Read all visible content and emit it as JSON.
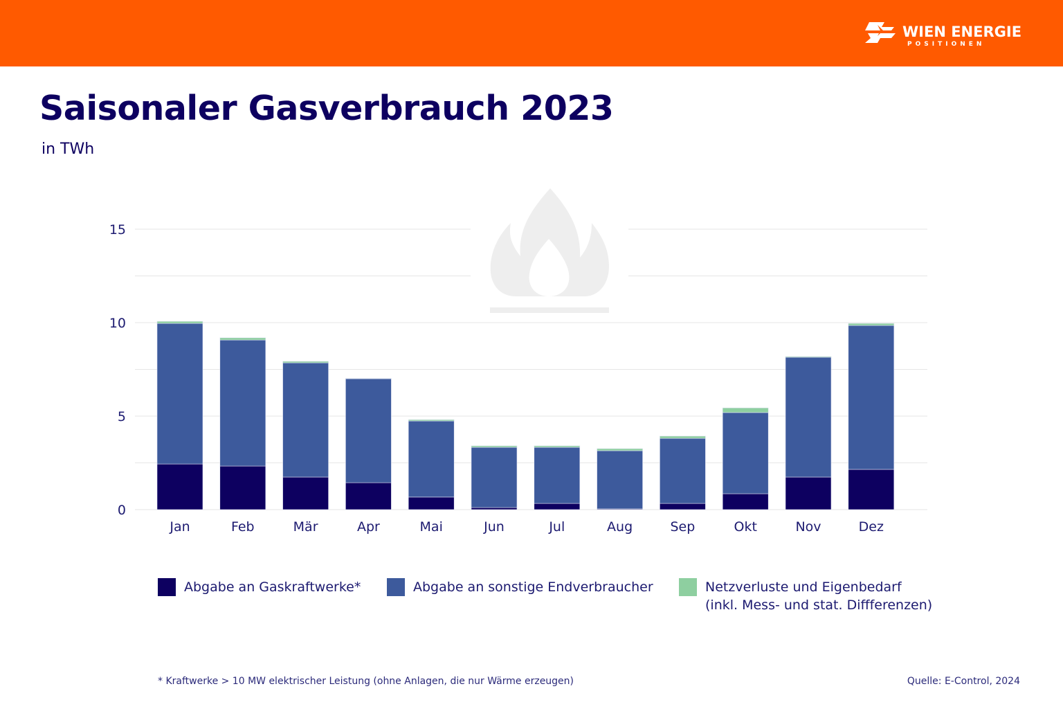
{
  "brand": {
    "name": "WIEN ENERGIE",
    "sub": "POSITIONEN",
    "color": "#ff5a00"
  },
  "title": "Saisonaler Gasverbrauch 2023",
  "subtitle": "in TWh",
  "chart_data": {
    "type": "bar",
    "stacked": true,
    "title": "Saisonaler Gasverbrauch 2023",
    "ylabel": "in TWh",
    "ylim": [
      0,
      15
    ],
    "yticks": [
      0,
      5,
      10,
      15
    ],
    "grid": true,
    "legend_position": "bottom",
    "categories": [
      "Jan",
      "Feb",
      "Mär",
      "Apr",
      "Mai",
      "Jun",
      "Jul",
      "Aug",
      "Sep",
      "Okt",
      "Nov",
      "Dez"
    ],
    "series": [
      {
        "name": "Abgabe an Gaskraftwerke*",
        "color": "#0d0060",
        "values": [
          2.44,
          2.33,
          1.74,
          1.44,
          0.67,
          0.11,
          0.33,
          0.04,
          0.33,
          0.85,
          1.74,
          2.15
        ]
      },
      {
        "name": "Abgabe an sonstige Endverbraucher",
        "color": "#3d5a9c",
        "values": [
          7.52,
          6.74,
          6.11,
          5.56,
          4.07,
          3.22,
          3.0,
          3.11,
          3.48,
          4.34,
          6.41,
          7.7
        ]
      },
      {
        "name": "Netzverluste und Eigenbedarf",
        "name_line2": "(inkl. Mess- und stat. Diffferenzen)",
        "color": "#8ecfa0",
        "values": [
          0.11,
          0.12,
          0.08,
          0.02,
          0.07,
          0.08,
          0.08,
          0.11,
          0.12,
          0.25,
          0.04,
          0.11
        ]
      }
    ]
  },
  "footnote": "* Kraftwerke > 10 MW elektrischer Leistung (ohne Anlagen, die nur Wärme erzeugen)",
  "source": "Quelle: E-Control, 2024",
  "icons": {
    "watermark": "flame-icon",
    "logo": "wien-energie-logo"
  }
}
